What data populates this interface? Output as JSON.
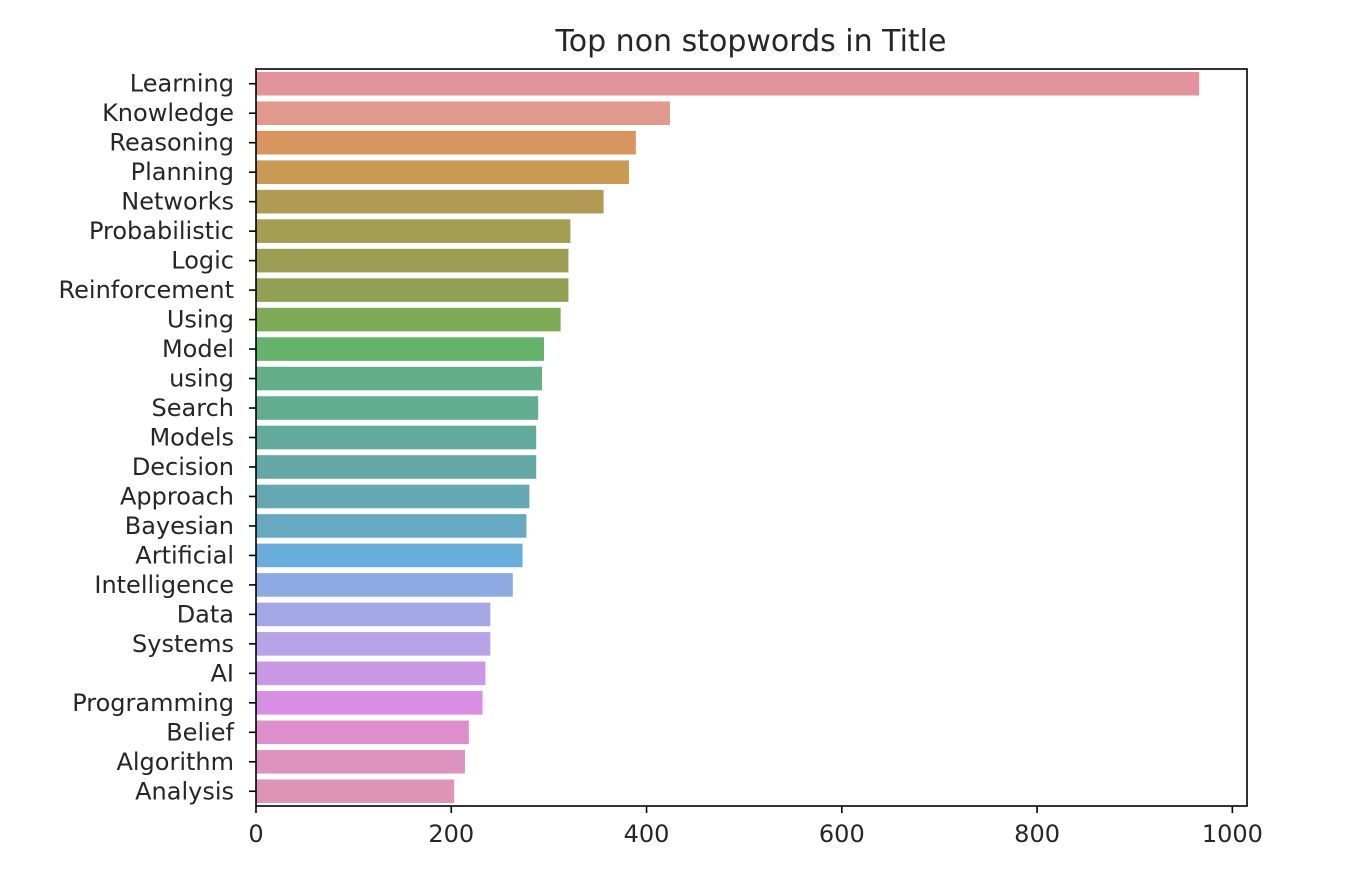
{
  "chart_data": {
    "type": "bar",
    "orientation": "horizontal",
    "title": "Top non stopwords in Title",
    "xlabel": "",
    "ylabel": "",
    "xlim": [
      0,
      1015
    ],
    "xticks": [
      0,
      200,
      400,
      600,
      800,
      1000
    ],
    "grid": false,
    "categories": [
      "Learning",
      "Knowledge",
      "Reasoning",
      "Planning",
      "Networks",
      "Probabilistic",
      "Logic",
      "Reinforcement",
      "Using",
      "Model",
      "using",
      "Search",
      "Models",
      "Decision",
      "Approach",
      "Bayesian",
      "Artificial",
      "Intelligence",
      "Data",
      "Systems",
      "AI",
      "Programming",
      "Belief",
      "Algorithm",
      "Analysis"
    ],
    "values": [
      966,
      424,
      389,
      382,
      356,
      322,
      320,
      320,
      312,
      295,
      293,
      289,
      287,
      287,
      280,
      277,
      273,
      263,
      240,
      240,
      235,
      232,
      218,
      214,
      203
    ],
    "colors": [
      "#e1949c",
      "#e1998c",
      "#d9955f",
      "#c99a53",
      "#b19a53",
      "#a59d52",
      "#9c9e53",
      "#91a053",
      "#7eab56",
      "#65b26b",
      "#63ad88",
      "#62ac92",
      "#61aa9c",
      "#63a8a4",
      "#64a9b1",
      "#66a9c1",
      "#68addb",
      "#8daae2",
      "#a4a7e5",
      "#b7a4e6",
      "#c997e4",
      "#d88ee2",
      "#dc8fcb",
      "#dd92bf",
      "#dc95b4"
    ]
  }
}
